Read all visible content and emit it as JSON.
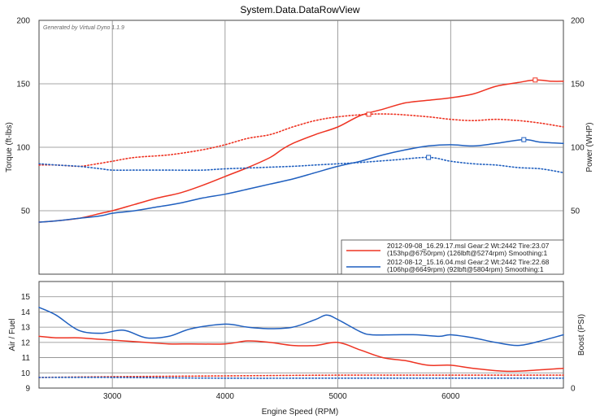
{
  "chart_data": {
    "type": "line",
    "title": "System.Data.DataRowView",
    "credit": "Generated by Virtual Dyno 1.1.9",
    "xlabel": "Engine Speed (RPM)",
    "xlim": [
      2350,
      7000
    ],
    "x_ticks": [
      3000,
      4000,
      5000,
      6000
    ],
    "grid": true,
    "top_panel": {
      "ylabel_left": "Torque (ft-lbs)",
      "ylabel_right": "Power (WHP)",
      "ylim": [
        0,
        200
      ],
      "y_ticks": [
        50,
        100,
        150,
        200
      ],
      "series": [
        {
          "name": "2012-09-08_16.29.17.msl power",
          "color": "#ee3322",
          "style": "solid",
          "x": [
            2350,
            2500,
            2700,
            2900,
            3000,
            3200,
            3400,
            3600,
            3800,
            4000,
            4200,
            4400,
            4500,
            4600,
            4800,
            5000,
            5200,
            5400,
            5600,
            5800,
            6000,
            6200,
            6400,
            6600,
            6750,
            6900,
            7000
          ],
          "y": [
            41,
            42,
            44,
            48,
            50,
            55,
            60,
            64,
            70,
            77,
            84,
            92,
            98,
            103,
            110,
            116,
            125,
            130,
            135,
            137,
            139,
            142,
            148,
            151,
            153,
            152,
            152
          ]
        },
        {
          "name": "2012-09-08_16.29.17.msl torque",
          "color": "#ee3322",
          "style": "dotted",
          "x": [
            2350,
            2500,
            2700,
            2800,
            3000,
            3200,
            3500,
            3800,
            4000,
            4200,
            4400,
            4600,
            4800,
            5000,
            5274,
            5500,
            5800,
            6000,
            6200,
            6400,
            6600,
            6800,
            7000
          ],
          "y": [
            86,
            86,
            85,
            86,
            89,
            92,
            94,
            98,
            102,
            107,
            110,
            116,
            121,
            124,
            126,
            126,
            124,
            122,
            121,
            122,
            121,
            119,
            116
          ]
        },
        {
          "name": "2012-08-12_15.16.04.msl power",
          "color": "#1f5fbf",
          "style": "solid",
          "x": [
            2350,
            2500,
            2700,
            2900,
            3000,
            3200,
            3400,
            3600,
            3800,
            4000,
            4200,
            4400,
            4600,
            4800,
            5000,
            5200,
            5400,
            5600,
            5800,
            6000,
            6200,
            6400,
            6649,
            6800,
            7000
          ],
          "y": [
            41,
            42,
            44,
            46,
            48,
            50,
            53,
            56,
            60,
            63,
            67,
            71,
            75,
            80,
            85,
            89,
            94,
            98,
            101,
            102,
            101,
            103,
            106,
            104,
            103
          ]
        },
        {
          "name": "2012-08-12_15.16.04.msl torque",
          "color": "#1f5fbf",
          "style": "dotted",
          "x": [
            2350,
            2500,
            2700,
            2900,
            3000,
            3200,
            3500,
            3800,
            4000,
            4300,
            4600,
            4800,
            5000,
            5200,
            5500,
            5804,
            6000,
            6200,
            6400,
            6600,
            6800,
            7000
          ],
          "y": [
            87,
            86,
            85,
            83,
            82,
            82,
            82,
            82,
            83,
            84,
            85,
            86,
            87,
            88,
            90,
            92,
            89,
            87,
            86,
            84,
            83,
            80
          ]
        }
      ],
      "markers": [
        {
          "x": 6750,
          "y": 153,
          "color": "#ee3322"
        },
        {
          "x": 5274,
          "y": 126,
          "color": "#ee3322"
        },
        {
          "x": 6649,
          "y": 106,
          "color": "#1f5fbf"
        },
        {
          "x": 5804,
          "y": 92,
          "color": "#1f5fbf"
        }
      ],
      "legend": {
        "placement": "bottom-right",
        "entries": [
          {
            "color": "#ee3322",
            "line1": "2012-09-08_16.29.17.msl Gear:2 Wt:2442 Tire:23.07",
            "line2": "(153hp@6750rpm) (126lbft@5274rpm) Smoothing:1"
          },
          {
            "color": "#1f5fbf",
            "line1": "2012-08-12_15.16.04.msl Gear:2 Wt:2442 Tire:22.68",
            "line2": "(106hp@6649rpm) (92lbft@5804rpm) Smoothing:1"
          }
        ]
      }
    },
    "bottom_panel": {
      "ylabel_left": "Air / Fuel",
      "ylabel_right": "Boost (PSI)",
      "ylim": [
        9,
        16
      ],
      "y_ticks": [
        9,
        10,
        11,
        12,
        13,
        14,
        15
      ],
      "right_ticks": [
        "0"
      ],
      "series": [
        {
          "name": "2012-09-08_16.29.17.msl air/fuel",
          "color": "#ee3322",
          "style": "solid",
          "x": [
            2350,
            2500,
            2700,
            2900,
            3100,
            3300,
            3500,
            3700,
            4000,
            4200,
            4400,
            4600,
            4800,
            5000,
            5200,
            5400,
            5600,
            5800,
            6000,
            6200,
            6500,
            6800,
            7000
          ],
          "y": [
            12.4,
            12.3,
            12.3,
            12.2,
            12.1,
            12.0,
            11.9,
            11.9,
            11.9,
            12.1,
            12.0,
            11.8,
            11.8,
            12.0,
            11.5,
            11.0,
            10.8,
            10.5,
            10.5,
            10.3,
            10.1,
            10.2,
            10.3
          ]
        },
        {
          "name": "2012-08-12_15.16.04.msl air/fuel",
          "color": "#1f5fbf",
          "style": "solid",
          "x": [
            2350,
            2500,
            2700,
            2900,
            3100,
            3300,
            3500,
            3700,
            4000,
            4200,
            4400,
            4600,
            4800,
            4900,
            5000,
            5200,
            5300,
            5500,
            5700,
            5900,
            6000,
            6200,
            6400,
            6600,
            6800,
            7000
          ],
          "y": [
            14.3,
            13.8,
            12.8,
            12.6,
            12.8,
            12.3,
            12.4,
            12.9,
            13.2,
            13.0,
            12.9,
            13.0,
            13.5,
            13.8,
            13.5,
            12.7,
            12.5,
            12.5,
            12.5,
            12.4,
            12.5,
            12.3,
            12.0,
            11.8,
            12.1,
            12.5
          ]
        },
        {
          "name": "2012-09-08_16.29.17.msl boost",
          "color": "#ee3322",
          "style": "dotted",
          "x": [
            2350,
            3000,
            4000,
            5000,
            6000,
            7000
          ],
          "y": [
            9.7,
            9.75,
            9.8,
            9.85,
            9.85,
            9.85
          ]
        },
        {
          "name": "2012-08-12_15.16.04.msl boost",
          "color": "#1f5fbf",
          "style": "dotted",
          "x": [
            2350,
            3000,
            4000,
            5000,
            6000,
            7000
          ],
          "y": [
            9.7,
            9.7,
            9.65,
            9.65,
            9.65,
            9.65
          ]
        }
      ]
    }
  }
}
